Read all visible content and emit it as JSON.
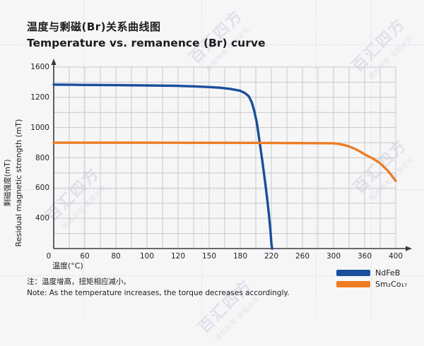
{
  "page": {
    "background": "#f6f6f7"
  },
  "title": {
    "zh": "温度与剩磁(Br)关系曲线图",
    "en": "Temperature vs. remanence (Br) curve"
  },
  "watermark": {
    "brand": "百汇四方",
    "line2": "版权所有 盗图必究"
  },
  "note": {
    "zh": "注：温度增高，扭矩相应减小。",
    "en": "Note: As the temperature increases, the torque decreases accordingly."
  },
  "legend": {
    "items": [
      {
        "label": "NdFeB",
        "color": "#1b4e9b"
      },
      {
        "label": "Sm₂Co₁₇",
        "color": "#ee7c23"
      }
    ]
  },
  "chart_data": {
    "type": "line",
    "title": "Temperature vs. remanence (Br) curve",
    "xlabel": "温度(°C)",
    "ylabel_zh": "剩磁强度(mT)",
    "ylabel_en": "Residual magnetic strength (mT)",
    "x_ticks": [
      0,
      60,
      80,
      100,
      120,
      150,
      180,
      220,
      260,
      300,
      360,
      400
    ],
    "y_ticks": [
      1600,
      1200,
      1000,
      800,
      600,
      400
    ],
    "y_axis_stops": [
      1600,
      1200,
      1000,
      800,
      600,
      400,
      200
    ],
    "grid": true,
    "legend_position": "bottom-right",
    "colors": {
      "grid": "#c8c8cb",
      "axis": "#3a3a3e"
    },
    "series": [
      {
        "name": "NdFeB",
        "color": "#1b4e9b",
        "points": [
          [
            0,
            1368
          ],
          [
            40,
            1366
          ],
          [
            60,
            1364
          ],
          [
            80,
            1361
          ],
          [
            100,
            1357
          ],
          [
            120,
            1352
          ],
          [
            135,
            1345
          ],
          [
            150,
            1336
          ],
          [
            160,
            1327
          ],
          [
            170,
            1312
          ],
          [
            180,
            1286
          ],
          [
            186,
            1256
          ],
          [
            191,
            1214
          ],
          [
            195,
            1164
          ],
          [
            198,
            1110
          ],
          [
            201,
            1040
          ],
          [
            203,
            975
          ],
          [
            205,
            900
          ],
          [
            207,
            830
          ],
          [
            209,
            755
          ],
          [
            211,
            678
          ],
          [
            213,
            598
          ],
          [
            215,
            512
          ],
          [
            217,
            418
          ],
          [
            219,
            308
          ],
          [
            220,
            235
          ],
          [
            221,
            200
          ]
        ]
      },
      {
        "name": "Sm₂Co₁₇",
        "color": "#ee7c23",
        "points": [
          [
            0,
            900
          ],
          [
            100,
            900
          ],
          [
            200,
            899
          ],
          [
            300,
            896
          ],
          [
            310,
            892
          ],
          [
            320,
            885
          ],
          [
            330,
            875
          ],
          [
            340,
            861
          ],
          [
            350,
            844
          ],
          [
            360,
            823
          ],
          [
            370,
            797
          ],
          [
            380,
            764
          ],
          [
            390,
            714
          ],
          [
            400,
            648
          ]
        ]
      }
    ]
  }
}
